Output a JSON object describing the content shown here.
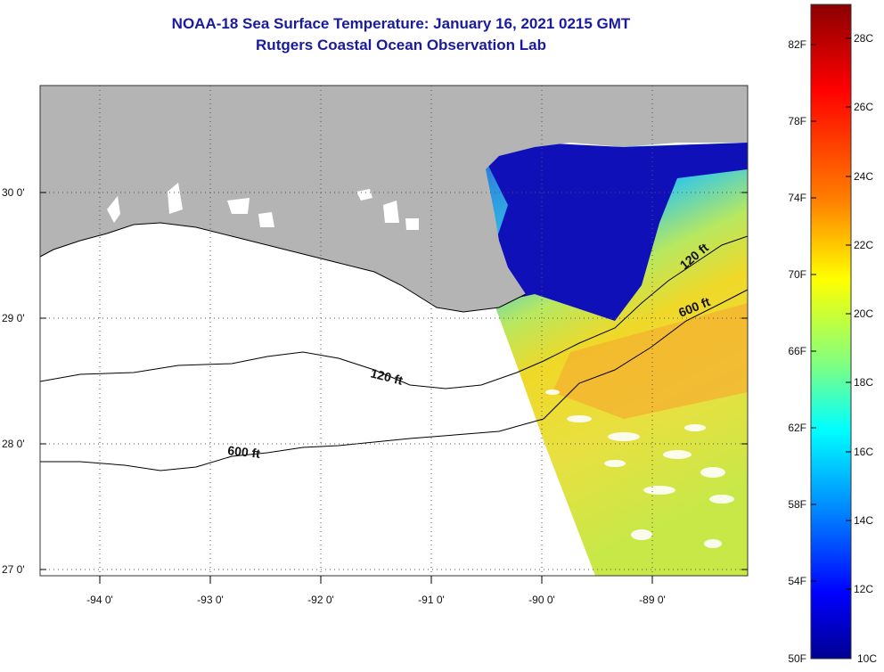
{
  "title": {
    "line1": "NOAA-18 Sea Surface Temperature:  January 16, 2021 0215 GMT",
    "line2": "Rutgers Coastal Ocean Observation Lab"
  },
  "map": {
    "lat_labels": [
      "30 0'",
      "29 0'",
      "28 0'",
      "27 0'"
    ],
    "lon_labels": [
      "-94 0'",
      "-93 0'",
      "-92 0'",
      "-91 0'",
      "-90 0'",
      "-89 0'"
    ],
    "contours": [
      {
        "label": "120 ft"
      },
      {
        "label": "600 ft"
      },
      {
        "label": "120 ft"
      },
      {
        "label": "600 ft"
      }
    ],
    "colors": {
      "land": "#b4b4b4",
      "water": "#ffffff"
    }
  },
  "colorbar": {
    "f_labels": [
      "82F",
      "78F",
      "74F",
      "70F",
      "66F",
      "62F",
      "58F",
      "54F",
      "50F"
    ],
    "c_labels": [
      "28C",
      "26C",
      "24C",
      "22C",
      "20C",
      "18C",
      "16C",
      "14C",
      "12C",
      "10C"
    ],
    "gradient": [
      "#8a0000",
      "#ff0000",
      "#ff8000",
      "#ffff00",
      "#80ff80",
      "#00ffff",
      "#0080ff",
      "#0000ff",
      "#000090"
    ]
  }
}
